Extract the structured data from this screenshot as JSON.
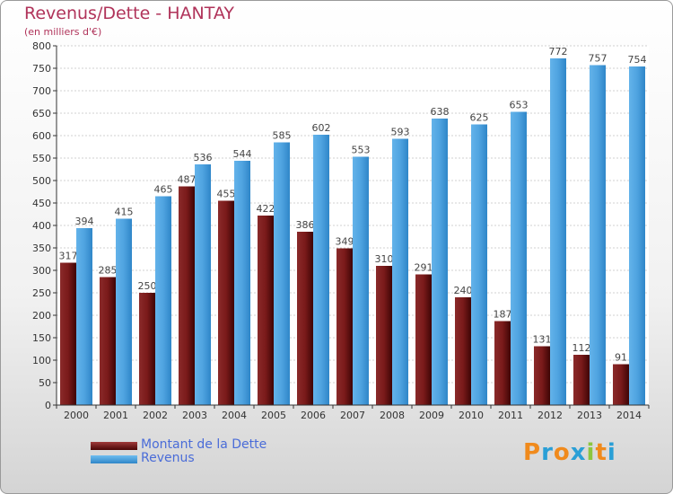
{
  "chart_data": {
    "type": "bar",
    "title": "Revenus/Dette - HANTAY",
    "subtitle": "(en milliers d'€)",
    "categories": [
      "2000",
      "2001",
      "2002",
      "2003",
      "2004",
      "2005",
      "2006",
      "2007",
      "2008",
      "2009",
      "2010",
      "2011",
      "2012",
      "2013",
      "2014"
    ],
    "series": [
      {
        "name": "Montant de la Dette",
        "color": "#7a1a1a",
        "values": [
          317,
          285,
          250,
          487,
          455,
          422,
          386,
          349,
          310,
          291,
          240,
          187,
          131,
          112,
          91
        ]
      },
      {
        "name": "Revenus",
        "color": "#4fa3e0",
        "values": [
          394,
          415,
          465,
          536,
          544,
          585,
          602,
          553,
          593,
          638,
          625,
          653,
          772,
          757,
          754
        ]
      }
    ],
    "ylim": [
      0,
      800
    ],
    "ytick_step": 50,
    "grid": true,
    "legend_position": "bottom-left"
  },
  "legend": {
    "debt_label": "Montant de la Dette",
    "revenue_label": "Revenus"
  },
  "logo": {
    "letters": [
      "P",
      "r",
      "o",
      "x",
      "i",
      "t",
      "i"
    ],
    "colors": [
      "#f08a1c",
      "#2a9fd6",
      "#f08a1c",
      "#2a9fd6",
      "#8cc63f",
      "#f08a1c",
      "#2a9fd6"
    ]
  }
}
